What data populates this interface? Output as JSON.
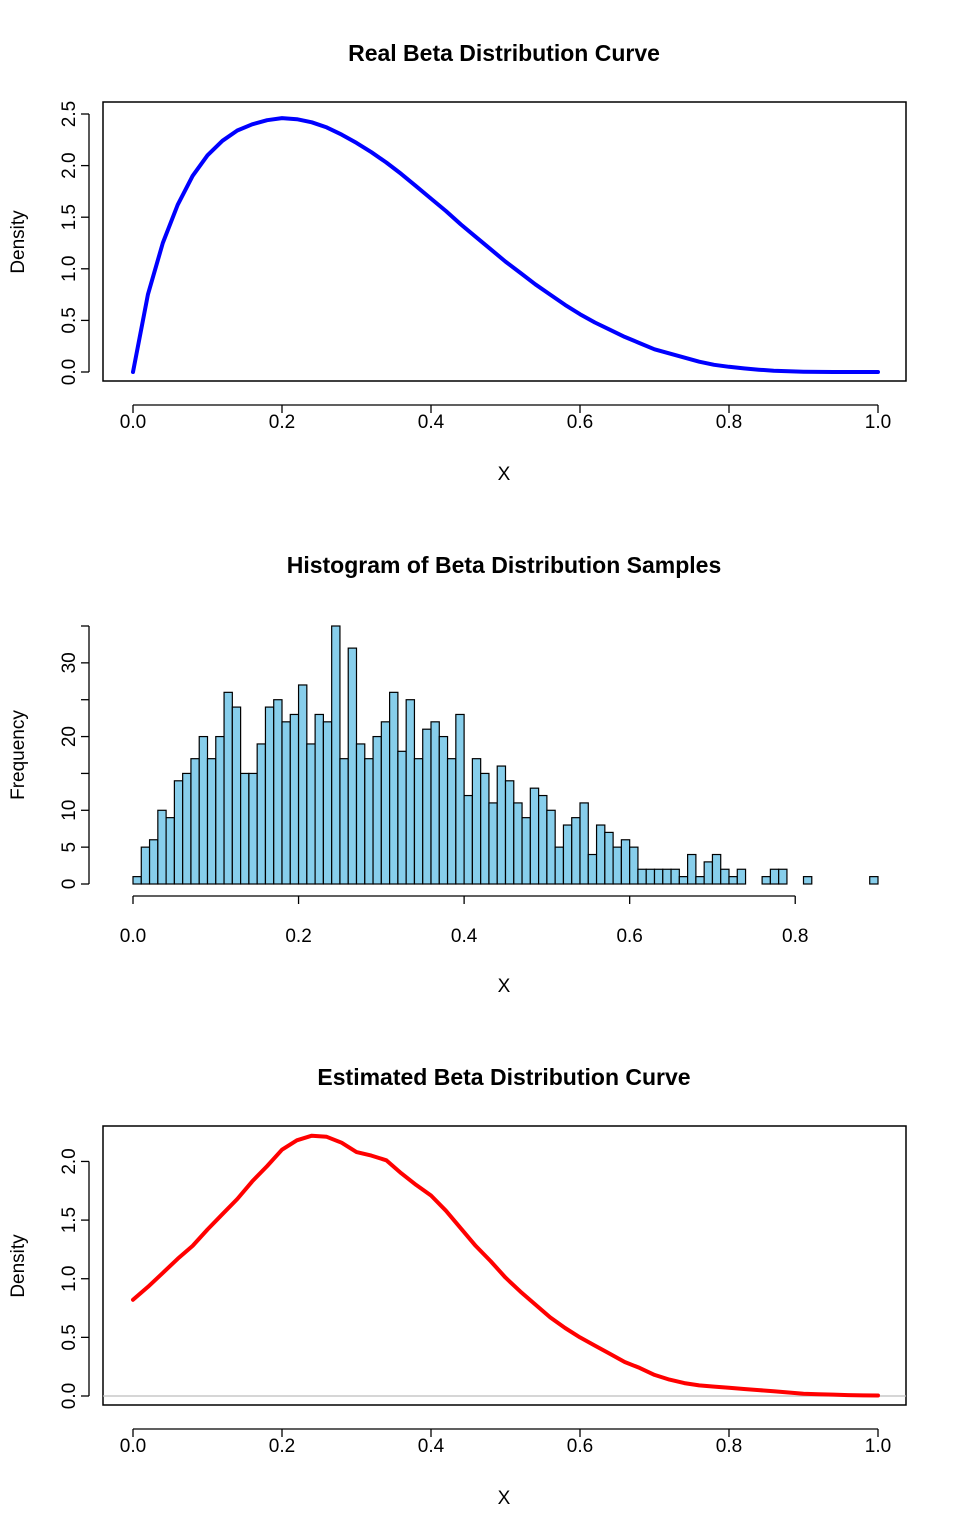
{
  "chart_data": [
    {
      "type": "line",
      "title": "Real Beta Distribution Curve",
      "xlabel": "X",
      "ylabel": "Density",
      "xlim": [
        0,
        1
      ],
      "ylim": [
        0,
        2.5
      ],
      "xticks": [
        "0.0",
        "0.2",
        "0.4",
        "0.6",
        "0.8",
        "1.0"
      ],
      "yticks": [
        "0.0",
        "0.5",
        "1.0",
        "1.5",
        "2.0",
        "2.5"
      ],
      "grid": false,
      "series": [
        {
          "color": "#0000ff",
          "x": [
            0,
            0.02,
            0.04,
            0.06,
            0.08,
            0.1,
            0.12,
            0.14,
            0.16,
            0.18,
            0.2,
            0.22,
            0.24,
            0.26,
            0.28,
            0.3,
            0.32,
            0.34,
            0.36,
            0.38,
            0.4,
            0.42,
            0.44,
            0.46,
            0.48,
            0.5,
            0.52,
            0.54,
            0.56,
            0.58,
            0.6,
            0.62,
            0.64,
            0.66,
            0.68,
            0.7,
            0.72,
            0.74,
            0.76,
            0.78,
            0.8,
            0.82,
            0.84,
            0.86,
            0.88,
            0.9,
            0.92,
            0.94,
            0.96,
            0.98,
            1
          ],
          "y": [
            0,
            0.75,
            1.25,
            1.62,
            1.9,
            2.1,
            2.24,
            2.34,
            2.4,
            2.44,
            2.46,
            2.45,
            2.42,
            2.37,
            2.3,
            2.22,
            2.13,
            2.03,
            1.92,
            1.8,
            1.68,
            1.56,
            1.43,
            1.31,
            1.19,
            1.07,
            0.96,
            0.85,
            0.75,
            0.65,
            0.56,
            0.48,
            0.41,
            0.34,
            0.28,
            0.22,
            0.18,
            0.14,
            0.1,
            0.07,
            0.05,
            0.035,
            0.022,
            0.013,
            0.007,
            0.003,
            0.0012,
            0.0004,
            0.0001,
            0,
            0
          ]
        }
      ]
    },
    {
      "type": "bar",
      "title": "Histogram of Beta Distribution Samples",
      "xlabel": "X",
      "ylabel": "Frequency",
      "xlim": [
        0,
        0.9
      ],
      "ylim": [
        0,
        35
      ],
      "bin_width": 0.01,
      "xticks": [
        "0.0",
        "0.2",
        "0.4",
        "0.6",
        "0.8"
      ],
      "yticks": [
        "0",
        "5",
        "10",
        "20",
        "30"
      ],
      "grid": false,
      "fill": "#87ceeb",
      "bins_start": [
        0,
        0.01,
        0.02,
        0.03,
        0.04,
        0.05,
        0.06,
        0.07,
        0.08,
        0.09,
        0.1,
        0.11,
        0.12,
        0.13,
        0.14,
        0.15,
        0.16,
        0.17,
        0.18,
        0.19,
        0.2,
        0.21,
        0.22,
        0.23,
        0.24,
        0.25,
        0.26,
        0.27,
        0.28,
        0.29,
        0.3,
        0.31,
        0.32,
        0.33,
        0.34,
        0.35,
        0.36,
        0.37,
        0.38,
        0.39,
        0.4,
        0.41,
        0.42,
        0.43,
        0.44,
        0.45,
        0.46,
        0.47,
        0.48,
        0.49,
        0.5,
        0.51,
        0.52,
        0.53,
        0.54,
        0.55,
        0.56,
        0.57,
        0.58,
        0.59,
        0.6,
        0.61,
        0.62,
        0.63,
        0.64,
        0.65,
        0.66,
        0.67,
        0.68,
        0.69,
        0.7,
        0.71,
        0.72,
        0.73,
        0.74,
        0.75,
        0.76,
        0.77,
        0.78,
        0.79,
        0.8,
        0.81,
        0.82,
        0.83,
        0.84,
        0.85,
        0.86,
        0.87,
        0.88,
        0.89
      ],
      "values": [
        1,
        5,
        6,
        10,
        9,
        14,
        15,
        17,
        20,
        17,
        20,
        26,
        24,
        15,
        15,
        19,
        24,
        25,
        22,
        23,
        27,
        19,
        23,
        22,
        35,
        17,
        32,
        19,
        17,
        20,
        22,
        26,
        18,
        25,
        17,
        21,
        22,
        20,
        17,
        23,
        12,
        17,
        15,
        11,
        16,
        14,
        11,
        9,
        13,
        12,
        10,
        5,
        8,
        9,
        11,
        4,
        8,
        7,
        5,
        6,
        5,
        2,
        2,
        2,
        2,
        2,
        1,
        4,
        1,
        3,
        4,
        2,
        1,
        2,
        0,
        0,
        1,
        2,
        2,
        0,
        0,
        1,
        0,
        0,
        0,
        0,
        0,
        0,
        0,
        1
      ]
    },
    {
      "type": "line",
      "title": "Estimated Beta Distribution Curve",
      "xlabel": "X",
      "ylabel": "Density",
      "xlim": [
        0,
        1
      ],
      "ylim": [
        0,
        2.2
      ],
      "xticks": [
        "0.0",
        "0.2",
        "0.4",
        "0.6",
        "0.8",
        "1.0"
      ],
      "yticks": [
        "0.0",
        "0.5",
        "1.0",
        "1.5",
        "2.0"
      ],
      "grid": false,
      "baseline": 0,
      "series": [
        {
          "color": "#ff0000",
          "x": [
            0,
            0.02,
            0.04,
            0.06,
            0.08,
            0.1,
            0.12,
            0.14,
            0.16,
            0.18,
            0.2,
            0.22,
            0.24,
            0.26,
            0.28,
            0.3,
            0.32,
            0.34,
            0.36,
            0.38,
            0.4,
            0.42,
            0.44,
            0.46,
            0.48,
            0.5,
            0.52,
            0.54,
            0.56,
            0.58,
            0.6,
            0.62,
            0.64,
            0.66,
            0.68,
            0.7,
            0.72,
            0.74,
            0.76,
            0.78,
            0.8,
            0.82,
            0.84,
            0.86,
            0.88,
            0.9,
            0.92,
            0.94,
            0.96,
            0.98,
            1
          ],
          "y": [
            0.82,
            0.93,
            1.05,
            1.17,
            1.28,
            1.42,
            1.55,
            1.68,
            1.83,
            1.96,
            2.1,
            2.18,
            2.22,
            2.21,
            2.16,
            2.08,
            2.05,
            2.01,
            1.9,
            1.8,
            1.71,
            1.58,
            1.43,
            1.28,
            1.15,
            1.01,
            0.89,
            0.78,
            0.67,
            0.58,
            0.5,
            0.43,
            0.36,
            0.29,
            0.24,
            0.18,
            0.14,
            0.11,
            0.09,
            0.08,
            0.07,
            0.06,
            0.05,
            0.04,
            0.03,
            0.02,
            0.015,
            0.012,
            0.008,
            0.005,
            0.004
          ]
        }
      ]
    }
  ]
}
